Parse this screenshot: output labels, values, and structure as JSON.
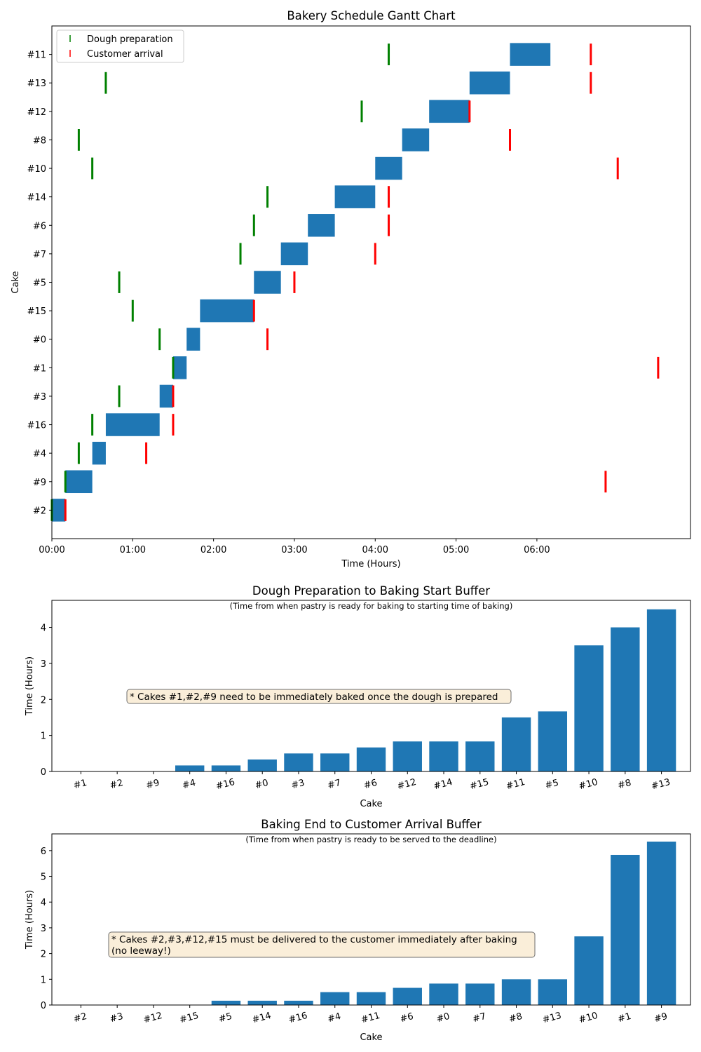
{
  "colors": {
    "bar": "#1f77b4",
    "dough": "#008000",
    "arrival": "#ff0000",
    "note_bg": "#f5deb3",
    "note_border": "#6e6e6e"
  },
  "chart_data": [
    {
      "type": "gantt",
      "title": "Bakery Schedule Gantt Chart",
      "xlabel": "Time (Hours)",
      "ylabel": "Cake",
      "xlim": [
        0,
        7.9
      ],
      "x_ticks": [
        {
          "value": 0,
          "label": "00:00"
        },
        {
          "value": 1,
          "label": "01:00"
        },
        {
          "value": 2,
          "label": "02:00"
        },
        {
          "value": 3,
          "label": "03:00"
        },
        {
          "value": 4,
          "label": "04:00"
        },
        {
          "value": 5,
          "label": "05:00"
        },
        {
          "value": 6,
          "label": "06:00"
        }
      ],
      "legend": {
        "placement": "upper-left",
        "entries": [
          {
            "label": "Dough preparation",
            "color_key": "dough"
          },
          {
            "label": "Customer arrival",
            "color_key": "arrival"
          }
        ]
      },
      "tasks": [
        {
          "cake": "#2",
          "start": 0.0,
          "end": 0.167,
          "dough": 0.0,
          "arrival": 0.167
        },
        {
          "cake": "#9",
          "start": 0.167,
          "end": 0.5,
          "dough": 0.167,
          "arrival": 6.85
        },
        {
          "cake": "#4",
          "start": 0.5,
          "end": 0.667,
          "dough": 0.333,
          "arrival": 1.167
        },
        {
          "cake": "#16",
          "start": 0.667,
          "end": 1.333,
          "dough": 0.5,
          "arrival": 1.5
        },
        {
          "cake": "#3",
          "start": 1.333,
          "end": 1.5,
          "dough": 0.833,
          "arrival": 1.5
        },
        {
          "cake": "#1",
          "start": 1.5,
          "end": 1.667,
          "dough": 1.5,
          "arrival": 7.5
        },
        {
          "cake": "#0",
          "start": 1.667,
          "end": 1.833,
          "dough": 1.333,
          "arrival": 2.667
        },
        {
          "cake": "#15",
          "start": 1.833,
          "end": 2.5,
          "dough": 1.0,
          "arrival": 2.5
        },
        {
          "cake": "#5",
          "start": 2.5,
          "end": 2.833,
          "dough": 0.833,
          "arrival": 3.0
        },
        {
          "cake": "#7",
          "start": 2.833,
          "end": 3.167,
          "dough": 2.333,
          "arrival": 4.0
        },
        {
          "cake": "#6",
          "start": 3.167,
          "end": 3.5,
          "dough": 2.5,
          "arrival": 4.167
        },
        {
          "cake": "#14",
          "start": 3.5,
          "end": 4.0,
          "dough": 2.667,
          "arrival": 4.167
        },
        {
          "cake": "#10",
          "start": 4.0,
          "end": 4.333,
          "dough": 0.5,
          "arrival": 7.0
        },
        {
          "cake": "#8",
          "start": 4.333,
          "end": 4.667,
          "dough": 0.333,
          "arrival": 5.667
        },
        {
          "cake": "#12",
          "start": 4.667,
          "end": 5.167,
          "dough": 3.833,
          "arrival": 5.167
        },
        {
          "cake": "#13",
          "start": 5.167,
          "end": 5.667,
          "dough": 0.667,
          "arrival": 6.667
        },
        {
          "cake": "#11",
          "start": 5.667,
          "end": 6.167,
          "dough": 4.167,
          "arrival": 6.667
        }
      ]
    },
    {
      "type": "bar",
      "title": "Dough Preparation to Baking Start Buffer",
      "subtitle": "(Time from when pastry is ready for baking to starting time of baking)",
      "xlabel": "Cake",
      "ylabel": "Time (Hours)",
      "ylim": [
        0,
        4.75
      ],
      "y_ticks": [
        0,
        1,
        2,
        3,
        4
      ],
      "categories": [
        "#1",
        "#2",
        "#9",
        "#4",
        "#16",
        "#0",
        "#3",
        "#7",
        "#6",
        "#12",
        "#14",
        "#15",
        "#11",
        "#5",
        "#10",
        "#8",
        "#13"
      ],
      "values": [
        0,
        0,
        0,
        0.167,
        0.167,
        0.333,
        0.5,
        0.5,
        0.667,
        0.833,
        0.833,
        0.833,
        1.5,
        1.667,
        3.5,
        4.0,
        4.5
      ],
      "annotation": "* Cakes #1,#2,#9 need to be immediately baked once the dough is prepared"
    },
    {
      "type": "bar",
      "title": "Baking End to Customer Arrival Buffer",
      "subtitle": "(Time from when pastry is ready to be served to the deadline)",
      "xlabel": "Cake",
      "ylabel": "Time (Hours)",
      "ylim": [
        0,
        6.65
      ],
      "y_ticks": [
        0,
        1,
        2,
        3,
        4,
        5,
        6
      ],
      "categories": [
        "#2",
        "#3",
        "#12",
        "#15",
        "#5",
        "#14",
        "#16",
        "#4",
        "#11",
        "#6",
        "#0",
        "#7",
        "#8",
        "#13",
        "#10",
        "#1",
        "#9"
      ],
      "values": [
        0,
        0,
        0,
        0,
        0.167,
        0.167,
        0.167,
        0.5,
        0.5,
        0.667,
        0.833,
        0.833,
        1.0,
        1.0,
        2.667,
        5.833,
        6.35
      ],
      "annotation_lines": [
        "* Cakes #2,#3,#12,#15 must be delivered to the customer immediately after baking",
        " (no leeway!)"
      ]
    }
  ]
}
